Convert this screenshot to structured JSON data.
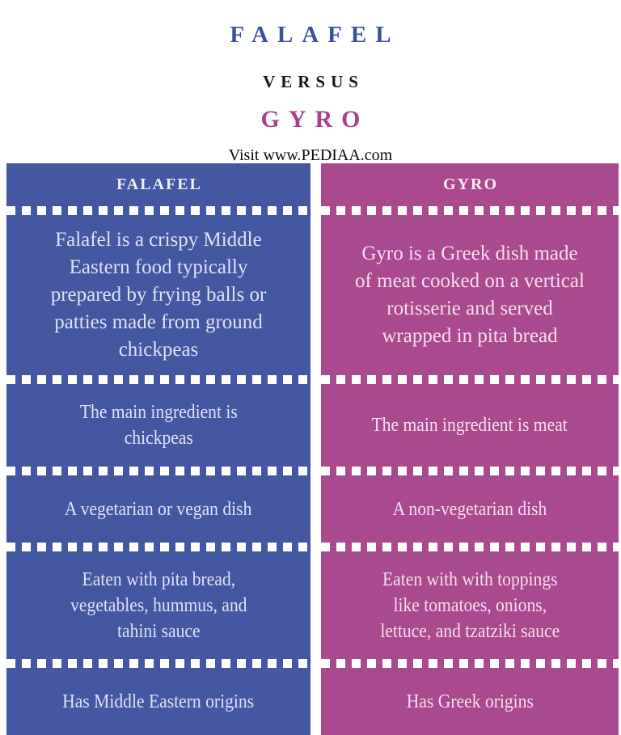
{
  "header": {
    "title_line1": "FALAFEL",
    "title_line2": "VERSUS",
    "title_line3": "GYRO",
    "site_note": "Visit www.PEDIAA.com"
  },
  "colors": {
    "falafel_column": "#4457a1",
    "gyro_column": "#a94a8e",
    "title_falafel_blue": "#3a4f9e",
    "title_gyro_magenta": "#aa3f8d",
    "divider_dash": "#ffffff",
    "falafel_text": "#dde3f6",
    "gyro_text": "#f6dff0"
  },
  "table": {
    "column_headers": {
      "falafel": "FALAFEL",
      "gyro": "GYRO"
    },
    "rows": [
      {
        "falafel": "Falafel is a crispy Middle\nEastern food typically\nprepared by frying balls or\npatties made from ground\nchickpeas",
        "gyro": "Gyro is a Greek dish made\nof meat cooked on a vertical\nrotisserie and served\nwrapped in pita bread"
      },
      {
        "falafel": "The main ingredient is\nchickpeas",
        "gyro": "The main ingredient is meat"
      },
      {
        "falafel": "A vegetarian or vegan dish",
        "gyro": "A non-vegetarian dish"
      },
      {
        "falafel": "Eaten with pita bread,\nvegetables, hummus, and\ntahini sauce",
        "gyro": "Eaten with with toppings\nlike tomatoes, onions,\nlettuce, and tzatziki sauce"
      },
      {
        "falafel": "Has Middle Eastern origins",
        "gyro": "Has Greek origins"
      }
    ]
  }
}
